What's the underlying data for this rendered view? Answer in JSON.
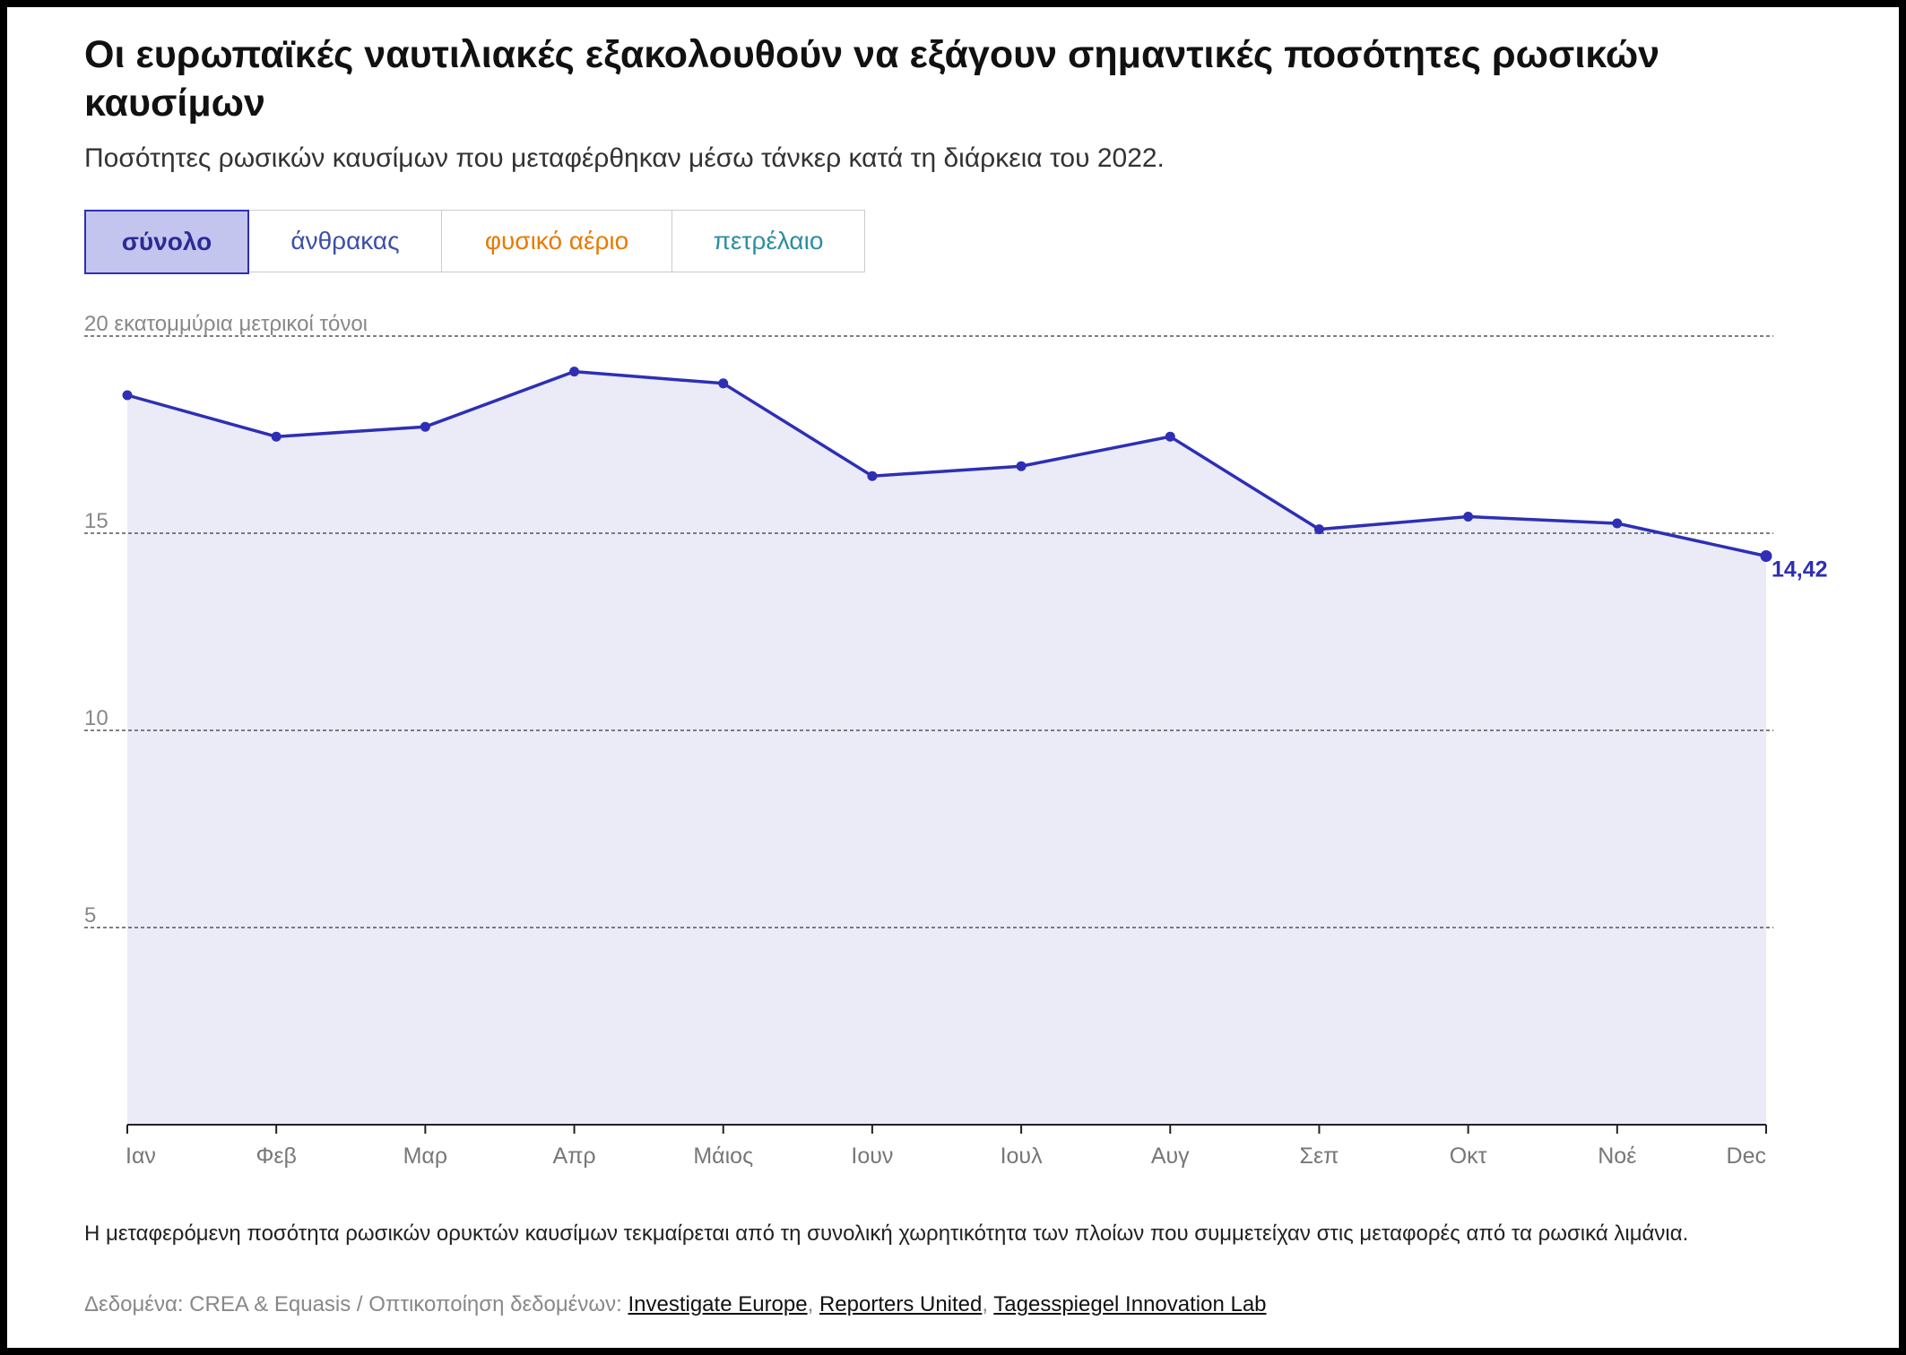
{
  "title": "Οι ευρωπαϊκές ναυτιλιακές εξακολουθούν να εξάγουν σημαντικές ποσότητες ρωσικών καυσίμων",
  "subtitle": "Ποσότητες ρωσικών καυσίμων που μεταφέρθηκαν μέσω τάνκερ κατά τη διάρκεια του 2022.",
  "tabs": [
    {
      "label": "σύνολο",
      "color": "#2a2b95",
      "active": true
    },
    {
      "label": "άνθρακας",
      "color": "#3a4fa8",
      "active": false
    },
    {
      "label": "φυσικό αέριο",
      "color": "#e87a00",
      "active": false
    },
    {
      "label": "πετρέλαιο",
      "color": "#2b8fa0",
      "active": false
    }
  ],
  "chart_data": {
    "type": "area",
    "unit_label": "20 εκατομμύρια μετρικοί τόνοι",
    "yticks": [
      "5",
      "10",
      "15"
    ],
    "ylim": [
      0,
      20
    ],
    "grid": true,
    "categories": [
      "Ιαν",
      "Φεβ",
      "Μαρ",
      "Απρ",
      "Μάιος",
      "Ιουν",
      "Ιουλ",
      "Αυγ",
      "Σεπ",
      "Οκτ",
      "Νοέ",
      "Dec"
    ],
    "values": [
      18.5,
      17.45,
      17.7,
      19.1,
      18.8,
      16.45,
      16.7,
      17.45,
      15.1,
      15.42,
      15.25,
      14.42
    ],
    "end_label": "14,42",
    "line_color": "#2e2fb5",
    "fill_color": "#ebebf7"
  },
  "note": "Η μεταφερόμενη ποσότητα ρωσικών ορυκτών καυσίμων τεκμαίρεται από τη συνολική χωρητικότητα των πλοίων που συμμετείχαν στις μεταφορές από τα ρωσικά λιμάνια.",
  "source": {
    "prefix": "Δεδομένα: CREA & Equasis / Οπτικοποίηση δεδομένων: ",
    "links": [
      "Investigate Europe",
      "Reporters United",
      "Tagesspiegel Innovation Lab"
    ],
    "separator": ", "
  }
}
